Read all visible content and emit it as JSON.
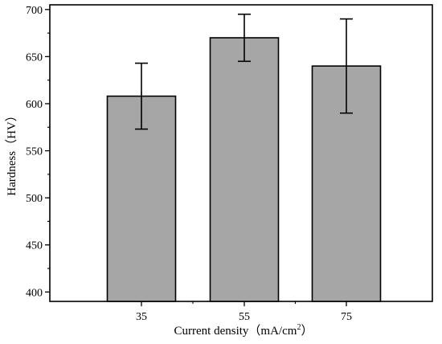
{
  "chart_data": {
    "type": "bar",
    "categories": [
      "35",
      "55",
      "75"
    ],
    "values": [
      608,
      670,
      640
    ],
    "error_low": [
      573,
      645,
      590
    ],
    "error_high": [
      643,
      695,
      690
    ],
    "title": "",
    "xlabel": "Current density（mA/cm",
    "xlabel_superscript": "2",
    "xlabel_close": "）",
    "ylabel": "Hardness（HV）",
    "ylim": [
      390,
      705
    ],
    "yticks": [
      400,
      450,
      500,
      550,
      600,
      650,
      700
    ],
    "bar_color": "#a6a6a6",
    "edge_color": "#000000",
    "grid": false,
    "legend": "none"
  }
}
